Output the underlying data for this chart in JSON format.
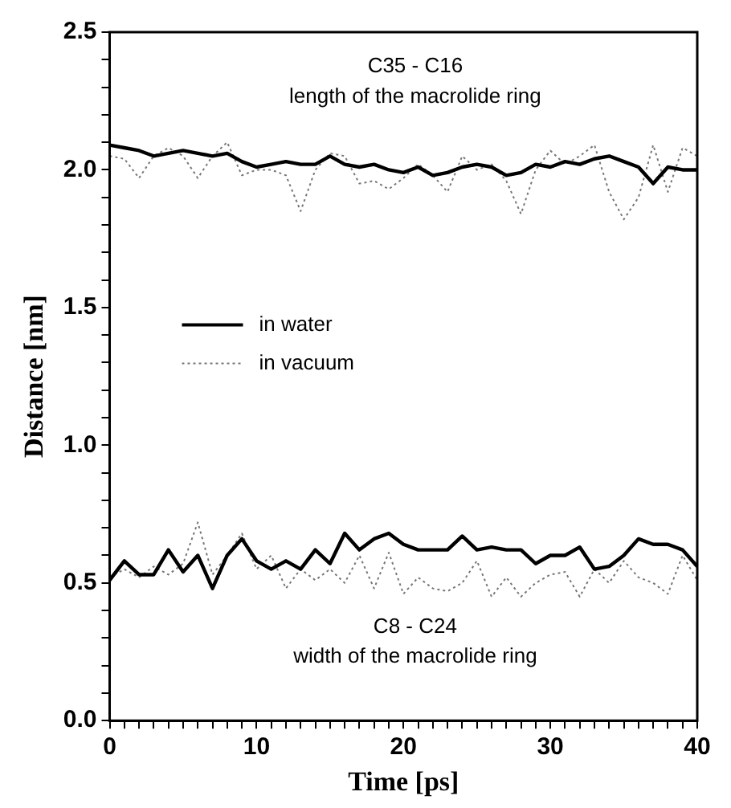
{
  "chart_data": {
    "type": "line",
    "xlabel": "Time [ps]",
    "ylabel": "Distance [nm]",
    "x": [
      0,
      1,
      2,
      3,
      4,
      5,
      6,
      7,
      8,
      9,
      10,
      11,
      12,
      13,
      14,
      15,
      16,
      17,
      18,
      19,
      20,
      21,
      22,
      23,
      24,
      25,
      26,
      27,
      28,
      29,
      30,
      31,
      32,
      33,
      34,
      35,
      36,
      37,
      38,
      39,
      40
    ],
    "series": [
      {
        "name": "in water",
        "color": "#000000",
        "line_style": "solid",
        "values": [
          2.09,
          2.08,
          2.07,
          2.05,
          2.06,
          2.07,
          2.06,
          2.05,
          2.06,
          2.03,
          2.01,
          2.02,
          2.03,
          2.02,
          2.02,
          2.05,
          2.02,
          2.01,
          2.02,
          2.0,
          1.99,
          2.01,
          1.98,
          1.99,
          2.01,
          2.02,
          2.01,
          1.98,
          1.99,
          2.02,
          2.01,
          2.03,
          2.02,
          2.04,
          2.05,
          2.03,
          2.01,
          1.95,
          2.01,
          2.0,
          2.0
        ]
      },
      {
        "name": "in vacuum",
        "color": "#777777",
        "line_style": "dotted",
        "values": [
          2.05,
          2.04,
          1.97,
          2.05,
          2.08,
          2.05,
          1.97,
          2.05,
          2.1,
          1.98,
          2.0,
          2.0,
          1.98,
          1.85,
          2.0,
          2.06,
          2.05,
          1.95,
          1.96,
          1.93,
          1.97,
          2.02,
          1.98,
          1.92,
          2.05,
          2.0,
          2.02,
          1.96,
          1.84,
          2.0,
          2.07,
          2.02,
          2.05,
          2.09,
          1.92,
          1.82,
          1.9,
          2.09,
          1.92,
          2.08,
          2.05
        ]
      },
      {
        "color": "#000000",
        "line_style": "solid",
        "values": [
          0.51,
          0.58,
          0.53,
          0.53,
          0.62,
          0.54,
          0.6,
          0.48,
          0.6,
          0.66,
          0.58,
          0.55,
          0.58,
          0.55,
          0.62,
          0.57,
          0.68,
          0.62,
          0.66,
          0.68,
          0.64,
          0.62,
          0.62,
          0.62,
          0.67,
          0.62,
          0.63,
          0.62,
          0.62,
          0.57,
          0.6,
          0.6,
          0.63,
          0.55,
          0.56,
          0.6,
          0.66,
          0.64,
          0.64,
          0.62,
          0.56
        ]
      },
      {
        "color": "#777777",
        "line_style": "dotted",
        "values": [
          0.52,
          0.55,
          0.52,
          0.56,
          0.53,
          0.57,
          0.72,
          0.53,
          0.6,
          0.68,
          0.55,
          0.6,
          0.48,
          0.55,
          0.51,
          0.55,
          0.5,
          0.6,
          0.48,
          0.61,
          0.46,
          0.52,
          0.48,
          0.47,
          0.5,
          0.58,
          0.45,
          0.52,
          0.45,
          0.5,
          0.53,
          0.54,
          0.45,
          0.55,
          0.5,
          0.58,
          0.52,
          0.5,
          0.46,
          0.6,
          0.51
        ]
      }
    ],
    "xlim": [
      0,
      40
    ],
    "xticks": [
      0,
      {
        "value": 1,
        "label": null
      },
      {
        "value": 2,
        "label": null
      },
      {
        "value": 3,
        "label": null
      },
      {
        "value": 4,
        "label": null
      },
      {
        "value": 5,
        "label": null
      },
      {
        "value": 6,
        "label": null
      },
      {
        "value": 7,
        "label": null
      },
      {
        "value": 8,
        "label": null
      },
      {
        "value": 9,
        "label": null
      },
      10,
      {
        "value": 11,
        "label": null
      },
      {
        "value": 12,
        "label": null
      },
      {
        "value": 13,
        "label": null
      },
      {
        "value": 14,
        "label": null
      },
      {
        "value": 15,
        "label": null
      },
      {
        "value": 16,
        "label": null
      },
      {
        "value": 17,
        "label": null
      },
      {
        "value": 18,
        "label": null
      },
      {
        "value": 19,
        "label": null
      },
      20,
      {
        "value": 21,
        "label": null
      },
      {
        "value": 22,
        "label": null
      },
      {
        "value": 23,
        "label": null
      },
      {
        "value": 24,
        "label": null
      },
      {
        "value": 25,
        "label": null
      },
      {
        "value": 26,
        "label": null
      },
      {
        "value": 27,
        "label": null
      },
      {
        "value": 28,
        "label": null
      },
      {
        "value": 29,
        "label": null
      },
      30,
      {
        "value": 31,
        "label": null
      },
      {
        "value": 32,
        "label": null
      },
      {
        "value": 33,
        "label": null
      },
      {
        "value": 34,
        "label": null
      },
      {
        "value": 35,
        "label": null
      },
      {
        "value": 36,
        "label": null
      },
      {
        "value": 37,
        "label": null
      },
      {
        "value": 38,
        "label": null
      },
      {
        "value": 39,
        "label": null
      },
      40
    ],
    "ylim": [
      0,
      2.5
    ],
    "yticks": [
      {
        "value": 0,
        "label": "0.0"
      },
      {
        "value": 0.1,
        "label": null
      },
      {
        "value": 0.2,
        "label": null
      },
      {
        "value": 0.3,
        "label": null
      },
      {
        "value": 0.4,
        "label": null
      },
      0.5,
      {
        "value": 0.6,
        "label": null
      },
      {
        "value": 0.7,
        "label": null
      },
      {
        "value": 0.8,
        "label": null
      },
      {
        "value": 0.9,
        "label": null
      },
      {
        "value": 1,
        "label": "1.0"
      },
      {
        "value": 1.1,
        "label": null
      },
      {
        "value": 1.2,
        "label": null
      },
      {
        "value": 1.3,
        "label": null
      },
      {
        "value": 1.4,
        "label": null
      },
      1.5,
      {
        "value": 1.6,
        "label": null
      },
      {
        "value": 1.7,
        "label": null
      },
      {
        "value": 1.8,
        "label": null
      },
      {
        "value": 1.9,
        "label": null
      },
      {
        "value": 2,
        "label": "2.0"
      },
      {
        "value": 2.1,
        "label": null
      },
      {
        "value": 2.2,
        "label": null
      },
      {
        "value": 2.3,
        "label": null
      },
      {
        "value": 2.4,
        "label": null
      },
      2.5
    ],
    "annotations": [
      "C35 - C16",
      "length of the macrolide ring",
      "C8 - C24",
      "width of the macrolide ring"
    ],
    "legend": "center left",
    "marker": "none",
    "grid": false
  }
}
